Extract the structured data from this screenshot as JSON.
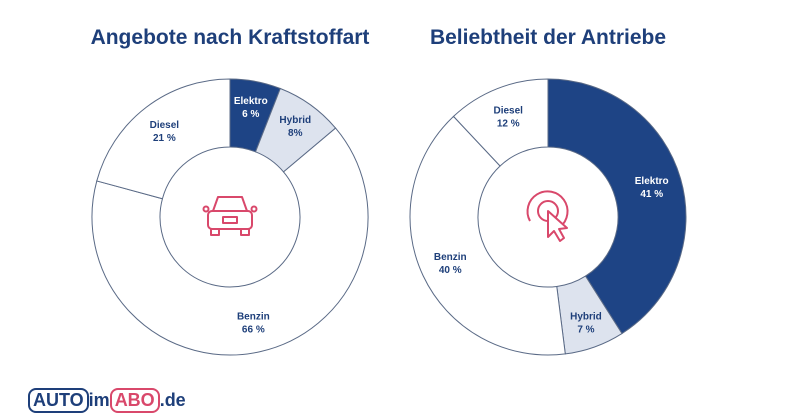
{
  "chart_data": [
    {
      "type": "pie",
      "donut": true,
      "title": "Angebote nach Kraftstoffart",
      "center_icon": "car-icon",
      "categories": [
        "Elektro",
        "Hybrid",
        "Benzin",
        "Diesel"
      ],
      "values": [
        6,
        8,
        66,
        21
      ],
      "labels": [
        "6 %",
        "8%",
        "66 %",
        "21 %"
      ],
      "colors": [
        "#1e4485",
        "#dde3ee",
        "#ffffff",
        "#ffffff"
      ]
    },
    {
      "type": "pie",
      "donut": true,
      "title": "Beliebtheit der Antriebe",
      "center_icon": "click-pointer-icon",
      "categories": [
        "Elektro",
        "Hybrid",
        "Benzin",
        "Diesel"
      ],
      "values": [
        41,
        7,
        40,
        12
      ],
      "labels": [
        "41 %",
        "7 %",
        "40 %",
        "12 %"
      ],
      "colors": [
        "#1e4485",
        "#dde3ee",
        "#ffffff",
        "#ffffff"
      ]
    }
  ],
  "logo": {
    "part1": "AUTO",
    "part2": "im",
    "part3": "ABO",
    "part4": ".de"
  },
  "colors": {
    "accent": "#1e3f7a",
    "icon": "#d9486b",
    "stroke": "#5a6a86"
  }
}
